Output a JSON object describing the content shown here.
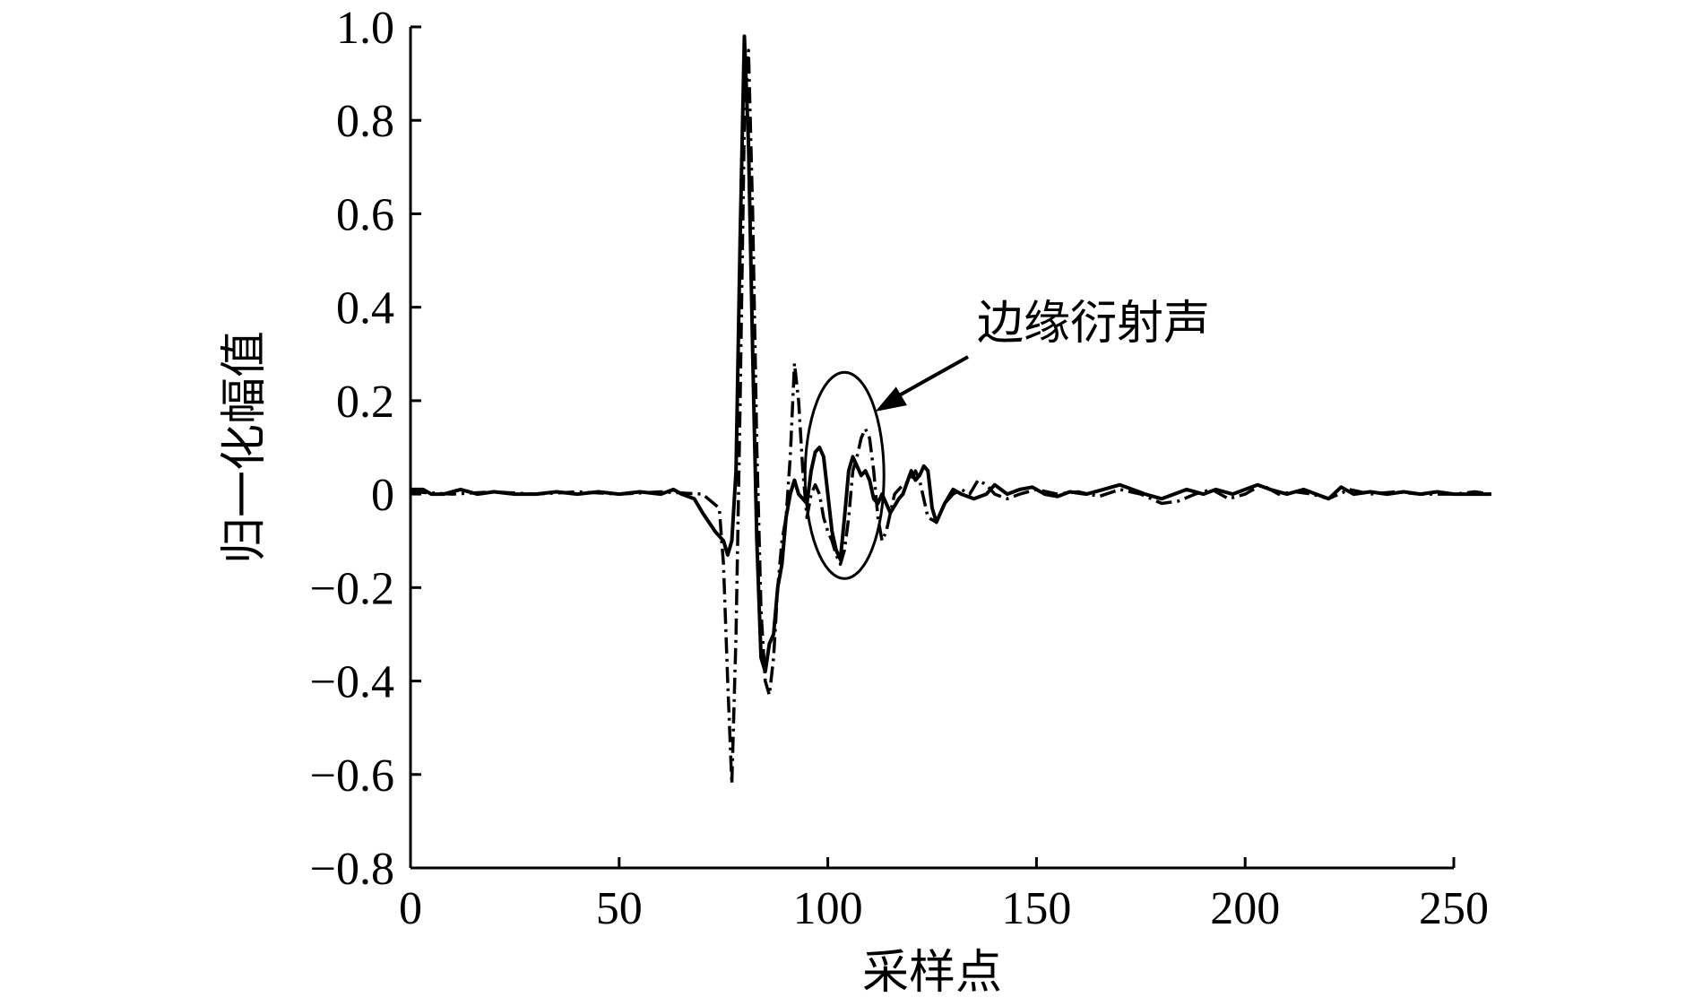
{
  "chart_data": {
    "type": "line",
    "xlabel": "采样点",
    "ylabel": "归一化幅值",
    "xlim": [
      0,
      250
    ],
    "ylim": [
      -0.8,
      1.0
    ],
    "xticks": [
      0,
      50,
      100,
      150,
      200,
      250
    ],
    "yticks": [
      -0.8,
      -0.6,
      -0.4,
      -0.2,
      0,
      0.2,
      0.4,
      0.6,
      0.8,
      1.0
    ],
    "xtick_labels": [
      "0",
      "50",
      "100",
      "150",
      "200",
      "250"
    ],
    "ytick_labels": [
      "−0.8",
      "−0.6",
      "−0.4",
      "−0.2",
      "0",
      "0.2",
      "0.4",
      "0.6",
      "0.8",
      "1.0"
    ],
    "grid": false,
    "annotation": {
      "text": "边缘衍射声",
      "target_x": 104,
      "target_y": 0.04
    },
    "series": [
      {
        "style": "solid",
        "points": [
          [
            0,
            0.01
          ],
          [
            3,
            0.01
          ],
          [
            5,
            0.0
          ],
          [
            8,
            0.0
          ],
          [
            12,
            0.01
          ],
          [
            16,
            0.0
          ],
          [
            20,
            0.005
          ],
          [
            25,
            0.0
          ],
          [
            30,
            0.0
          ],
          [
            35,
            0.005
          ],
          [
            40,
            0.0
          ],
          [
            45,
            0.005
          ],
          [
            50,
            0.0
          ],
          [
            55,
            0.005
          ],
          [
            60,
            0.0
          ],
          [
            63,
            0.01
          ],
          [
            65,
            0.0
          ],
          [
            68,
            -0.01
          ],
          [
            70,
            -0.04
          ],
          [
            73,
            -0.08
          ],
          [
            75,
            -0.1
          ],
          [
            76,
            -0.13
          ],
          [
            77,
            -0.1
          ],
          [
            78,
            0.05
          ],
          [
            79,
            0.55
          ],
          [
            80,
            0.98
          ],
          [
            81,
            0.75
          ],
          [
            82,
            0.3
          ],
          [
            83,
            -0.1
          ],
          [
            84,
            -0.35
          ],
          [
            85,
            -0.38
          ],
          [
            86,
            -0.32
          ],
          [
            87,
            -0.3
          ],
          [
            88,
            -0.2
          ],
          [
            89,
            -0.15
          ],
          [
            90,
            -0.05
          ],
          [
            91,
            0.0
          ],
          [
            92,
            0.03
          ],
          [
            93,
            0.0
          ],
          [
            95,
            -0.02
          ],
          [
            96,
            0.05
          ],
          [
            97,
            0.09
          ],
          [
            98,
            0.1
          ],
          [
            99,
            0.08
          ],
          [
            100,
            0.0
          ],
          [
            101,
            -0.08
          ],
          [
            102,
            -0.12
          ],
          [
            103,
            -0.14
          ],
          [
            104,
            -0.05
          ],
          [
            105,
            0.05
          ],
          [
            106,
            0.08
          ],
          [
            107,
            0.06
          ],
          [
            108,
            0.04
          ],
          [
            109,
            0.05
          ],
          [
            110,
            0.03
          ],
          [
            111,
            -0.01
          ],
          [
            112,
            -0.02
          ],
          [
            113,
            0.0
          ],
          [
            115,
            -0.04
          ],
          [
            117,
            -0.01
          ],
          [
            118,
            0.0
          ],
          [
            120,
            0.05
          ],
          [
            121,
            0.03
          ],
          [
            122,
            0.04
          ],
          [
            123,
            0.06
          ],
          [
            124,
            0.05
          ],
          [
            125,
            -0.03
          ],
          [
            126,
            -0.06
          ],
          [
            128,
            -0.02
          ],
          [
            130,
            0.01
          ],
          [
            132,
            0.0
          ],
          [
            135,
            -0.01
          ],
          [
            138,
            0.0
          ],
          [
            140,
            0.02
          ],
          [
            143,
            0.0
          ],
          [
            146,
            0.01
          ],
          [
            149,
            0.015
          ],
          [
            152,
            0.0
          ],
          [
            155,
            -0.005
          ],
          [
            158,
            0.005
          ],
          [
            162,
            0.0
          ],
          [
            166,
            0.01
          ],
          [
            170,
            0.02
          ],
          [
            173,
            0.01
          ],
          [
            176,
            0.0
          ],
          [
            180,
            -0.01
          ],
          [
            183,
            0.0
          ],
          [
            186,
            0.01
          ],
          [
            190,
            0.0
          ],
          [
            193,
            0.01
          ],
          [
            197,
            0.0
          ],
          [
            200,
            0.01
          ],
          [
            203,
            0.02
          ],
          [
            206,
            0.01
          ],
          [
            210,
            0.0
          ],
          [
            214,
            0.01
          ],
          [
            217,
            0.0
          ],
          [
            220,
            -0.01
          ],
          [
            223,
            0.015
          ],
          [
            226,
            0.0
          ],
          [
            230,
            0.005
          ],
          [
            234,
            0.0
          ],
          [
            238,
            0.005
          ],
          [
            242,
            0.0
          ],
          [
            246,
            0.005
          ],
          [
            250,
            0.0
          ],
          [
            255,
            0.0
          ],
          [
            259,
            0.0
          ]
        ]
      },
      {
        "style": "dashdot",
        "points": [
          [
            0,
            0.005
          ],
          [
            10,
            0.0
          ],
          [
            20,
            0.005
          ],
          [
            30,
            0.0
          ],
          [
            40,
            0.005
          ],
          [
            50,
            0.0
          ],
          [
            60,
            0.005
          ],
          [
            70,
            0.0
          ],
          [
            74,
            -0.03
          ],
          [
            75,
            -0.15
          ],
          [
            76,
            -0.4
          ],
          [
            77,
            -0.62
          ],
          [
            78,
            -0.3
          ],
          [
            79,
            0.2
          ],
          [
            80,
            0.8
          ],
          [
            81,
            0.95
          ],
          [
            82,
            0.6
          ],
          [
            83,
            0.1
          ],
          [
            84,
            -0.25
          ],
          [
            85,
            -0.4
          ],
          [
            86,
            -0.43
          ],
          [
            87,
            -0.35
          ],
          [
            88,
            -0.2
          ],
          [
            89,
            -0.1
          ],
          [
            90,
            -0.05
          ],
          [
            91,
            0.08
          ],
          [
            92,
            0.28
          ],
          [
            93,
            0.2
          ],
          [
            94,
            0.05
          ],
          [
            95,
            -0.05
          ],
          [
            96,
            0.0
          ],
          [
            97,
            0.02
          ],
          [
            98,
            0.0
          ],
          [
            99,
            -0.05
          ],
          [
            100,
            -0.08
          ],
          [
            101,
            -0.1
          ],
          [
            102,
            -0.13
          ],
          [
            103,
            -0.15
          ],
          [
            104,
            -0.12
          ],
          [
            105,
            -0.05
          ],
          [
            106,
            0.05
          ],
          [
            107,
            0.08
          ],
          [
            108,
            0.12
          ],
          [
            109,
            0.14
          ],
          [
            110,
            0.12
          ],
          [
            111,
            0.05
          ],
          [
            112,
            -0.05
          ],
          [
            113,
            -0.1
          ],
          [
            114,
            -0.08
          ],
          [
            115,
            -0.04
          ],
          [
            116,
            0.0
          ],
          [
            118,
            0.02
          ],
          [
            120,
            0.03
          ],
          [
            121,
            0.05
          ],
          [
            122,
            0.03
          ],
          [
            124,
            -0.05
          ],
          [
            126,
            -0.06
          ],
          [
            128,
            -0.02
          ],
          [
            130,
            0.0
          ],
          [
            132,
            0.01
          ],
          [
            134,
            0.0
          ],
          [
            136,
            0.03
          ],
          [
            138,
            0.02
          ],
          [
            140,
            0.0
          ],
          [
            143,
            -0.01
          ],
          [
            146,
            0.0
          ],
          [
            150,
            0.01
          ],
          [
            155,
            0.0
          ],
          [
            160,
            0.005
          ],
          [
            165,
            -0.005
          ],
          [
            170,
            0.01
          ],
          [
            175,
            0.0
          ],
          [
            180,
            -0.02
          ],
          [
            184,
            -0.015
          ],
          [
            188,
            0.0
          ],
          [
            192,
            0.01
          ],
          [
            196,
            -0.01
          ],
          [
            200,
            0.0
          ],
          [
            204,
            0.02
          ],
          [
            208,
            0.0
          ],
          [
            212,
            0.005
          ],
          [
            216,
            0.0
          ],
          [
            220,
            -0.01
          ],
          [
            225,
            0.01
          ],
          [
            230,
            0.0
          ],
          [
            236,
            0.005
          ],
          [
            242,
            0.0
          ],
          [
            250,
            0.0
          ],
          [
            255,
            0.005
          ],
          [
            259,
            0.0
          ]
        ]
      }
    ]
  }
}
